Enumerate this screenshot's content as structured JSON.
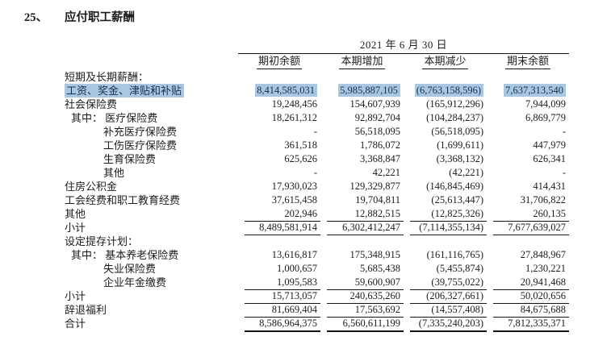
{
  "page": {
    "item_number": "25、",
    "title": "应付职工薪酬"
  },
  "table": {
    "date_header": "2021 年 6 月 30 日",
    "columns": [
      "期初余额",
      "本期增加",
      "本期减少",
      "期末余额"
    ],
    "highlight_color": "#a9c7e2",
    "rows": [
      {
        "label": "短期及长期薪酬：",
        "indent": 0,
        "values": [
          "",
          "",
          "",
          ""
        ],
        "highlight": false,
        "rule": ""
      },
      {
        "label": "工资、奖金、津贴和补贴",
        "indent": 0,
        "values": [
          "8,414,585,031",
          "5,985,887,105",
          "(6,763,158,596)",
          "7,637,313,540"
        ],
        "highlight": true,
        "rule": ""
      },
      {
        "label": "社会保险费",
        "indent": 0,
        "values": [
          "19,248,456",
          "154,607,939",
          "(165,912,296)",
          "7,944,099"
        ],
        "highlight": false,
        "rule": ""
      },
      {
        "label": "其中： 医疗保险费",
        "indent": 1,
        "values": [
          "18,261,312",
          "92,892,704",
          "(104,284,237)",
          "6,869,779"
        ],
        "highlight": false,
        "rule": ""
      },
      {
        "label": "补充医疗保险费",
        "indent": 2,
        "values": [
          "-",
          "56,518,095",
          "(56,518,095)",
          "-"
        ],
        "highlight": false,
        "rule": ""
      },
      {
        "label": "工伤医疗保险费",
        "indent": 2,
        "values": [
          "361,518",
          "1,786,072",
          "(1,699,611)",
          "447,979"
        ],
        "highlight": false,
        "rule": ""
      },
      {
        "label": "生育保险费",
        "indent": 2,
        "values": [
          "625,626",
          "3,368,847",
          "(3,368,132)",
          "626,341"
        ],
        "highlight": false,
        "rule": ""
      },
      {
        "label": "其他",
        "indent": 2,
        "values": [
          "-",
          "42,221",
          "(42,221)",
          "-"
        ],
        "highlight": false,
        "rule": ""
      },
      {
        "label": "住房公积金",
        "indent": 0,
        "values": [
          "17,930,023",
          "129,329,877",
          "(146,845,469)",
          "414,431"
        ],
        "highlight": false,
        "rule": ""
      },
      {
        "label": "工会经费和职工教育经费",
        "indent": 0,
        "values": [
          "37,615,458",
          "19,704,811",
          "(25,613,447)",
          "31,706,822"
        ],
        "highlight": false,
        "rule": ""
      },
      {
        "label": "其他",
        "indent": 0,
        "values": [
          "202,946",
          "12,882,515",
          "(12,825,326)",
          "260,135"
        ],
        "highlight": false,
        "rule": "thin"
      },
      {
        "label": "小计",
        "indent": 0,
        "values": [
          "8,489,581,914",
          "6,302,412,247",
          "(7,114,355,134)",
          "7,677,639,027"
        ],
        "highlight": false,
        "rule": "thin"
      },
      {
        "label": "设定提存计划：",
        "indent": 0,
        "values": [
          "",
          "",
          "",
          ""
        ],
        "highlight": false,
        "rule": ""
      },
      {
        "label": "其中： 基本养老保险费",
        "indent": 1,
        "values": [
          "13,616,817",
          "175,348,915",
          "(161,116,765)",
          "27,848,967"
        ],
        "highlight": false,
        "rule": ""
      },
      {
        "label": "失业保险费",
        "indent": 2,
        "values": [
          "1,000,657",
          "5,685,438",
          "(5,455,874)",
          "1,230,221"
        ],
        "highlight": false,
        "rule": ""
      },
      {
        "label": "企业年金缴费",
        "indent": 2,
        "values": [
          "1,095,583",
          "59,600,907",
          "(39,755,022)",
          "20,941,468"
        ],
        "highlight": false,
        "rule": "thin"
      },
      {
        "label": "小计",
        "indent": 0,
        "values": [
          "15,713,057",
          "240,635,260",
          "(206,327,661)",
          "50,020,656"
        ],
        "highlight": false,
        "rule": "thin"
      },
      {
        "label": "辞退福利",
        "indent": 0,
        "values": [
          "81,669,404",
          "17,563,692",
          "(14,557,408)",
          "84,675,688"
        ],
        "highlight": false,
        "rule": "thin"
      },
      {
        "label": "合计",
        "indent": 0,
        "values": [
          "8,586,964,375",
          "6,560,611,199",
          "(7,335,240,203)",
          "7,812,335,371"
        ],
        "highlight": false,
        "rule": "thick"
      }
    ]
  }
}
